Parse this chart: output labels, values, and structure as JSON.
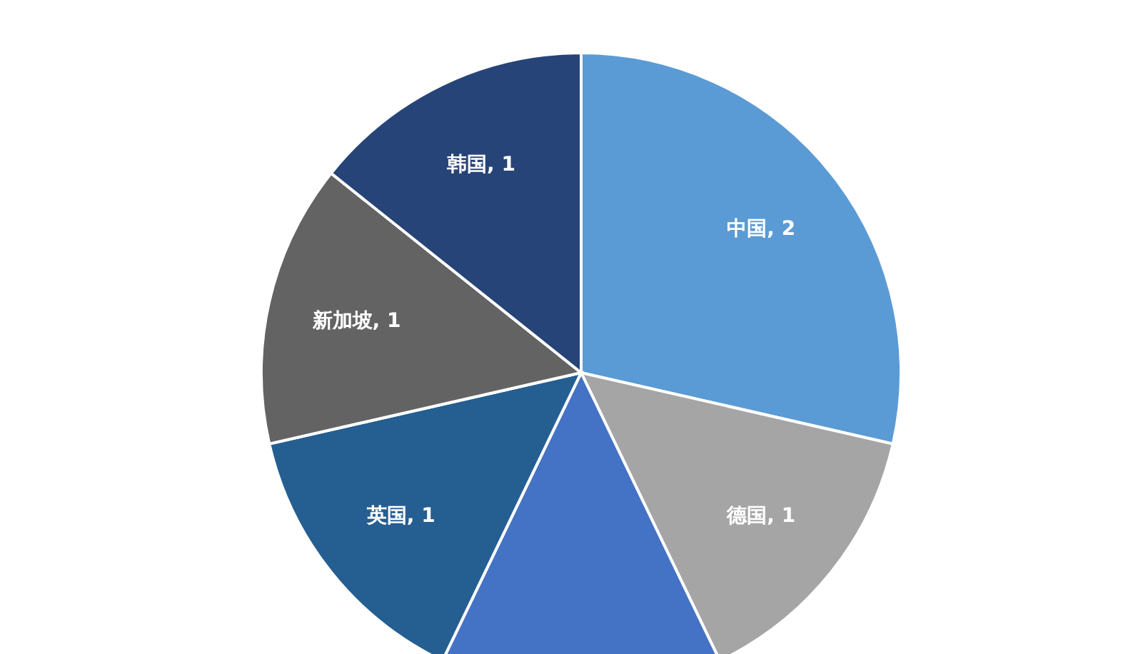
{
  "chart_data": {
    "type": "pie",
    "categories": [
      "中国",
      "德国",
      null,
      "英国",
      "新加坡",
      "韩国"
    ],
    "values": [
      2,
      1,
      1,
      1,
      1,
      1
    ],
    "colors": [
      "#5b9bd5",
      "#a5a5a5",
      "#4472c4",
      "#255e91",
      "#636363",
      "#264478"
    ],
    "value_labels": [
      "2",
      "1",
      null,
      "1",
      "1",
      "1"
    ],
    "legend": false
  }
}
